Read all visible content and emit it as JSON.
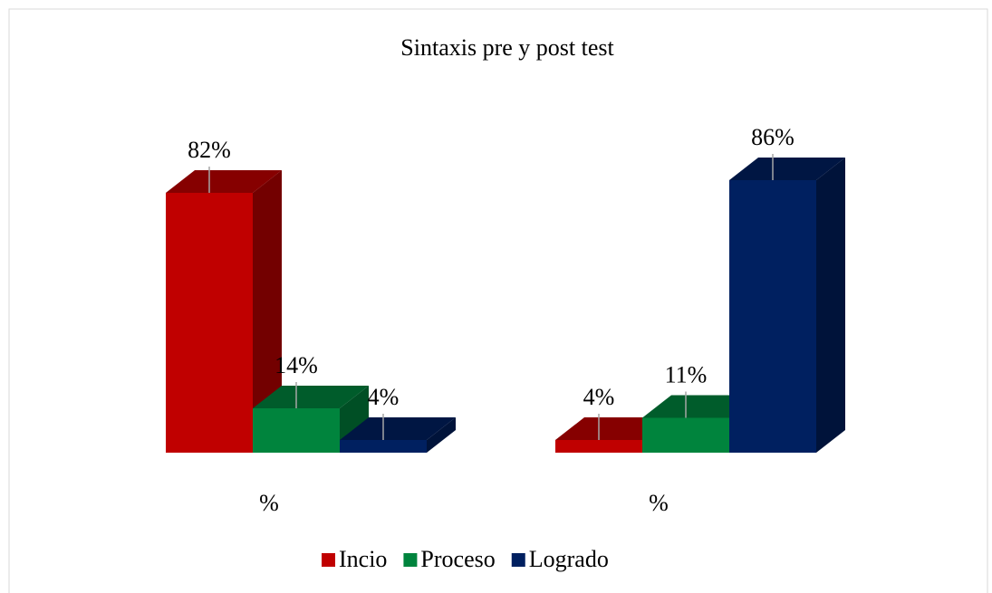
{
  "chart_data": {
    "type": "bar3d",
    "title": "Sintaxis pre y post test",
    "categories": [
      "%",
      "%"
    ],
    "series": [
      {
        "name": "Incio",
        "color": "#c00000",
        "values": [
          82,
          4
        ],
        "value_labels": [
          "82%",
          "4%"
        ]
      },
      {
        "name": "Proceso",
        "color": "#00843d",
        "values": [
          14,
          11
        ],
        "value_labels": [
          "14%",
          "11%"
        ]
      },
      {
        "name": "Logrado",
        "color": "#002060",
        "values": [
          4,
          86
        ],
        "value_labels": [
          "4%",
          "86%"
        ]
      }
    ],
    "legend": "bottom"
  }
}
